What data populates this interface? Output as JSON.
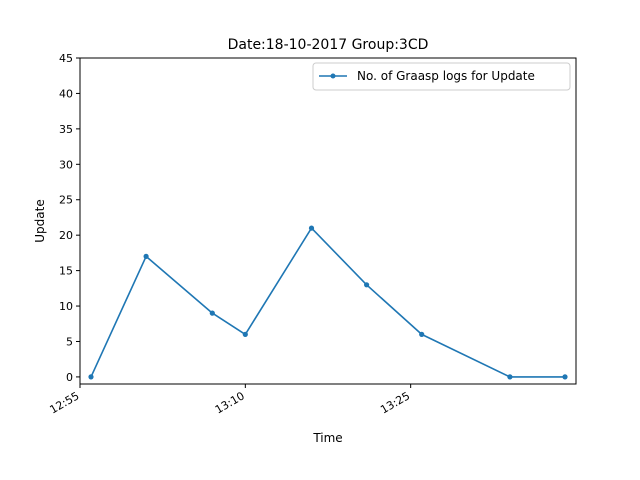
{
  "chart_data": {
    "type": "line",
    "title": "Date:18-10-2017  Group:3CD",
    "xlabel": "Time",
    "ylabel": "Update",
    "x_unit": "time (HH:MM)",
    "x": [
      "12:56",
      "13:01",
      "13:07",
      "13:10",
      "13:16",
      "13:21",
      "13:26",
      "13:34",
      "13:39"
    ],
    "xlim": [
      "12:55",
      "13:40"
    ],
    "x_ticks": [
      "12:55",
      "13:10",
      "13:25"
    ],
    "ylim": [
      -1,
      45
    ],
    "y_ticks": [
      0,
      5,
      10,
      15,
      20,
      25,
      30,
      35,
      40,
      45
    ],
    "series": [
      {
        "name": "No. of Graasp logs for Update",
        "values": [
          0,
          17,
          9,
          6,
          21,
          13,
          6,
          0,
          0
        ],
        "color": "#1f77b4",
        "marker": "circle"
      }
    ],
    "legend_position": "top-right",
    "grid": false
  }
}
